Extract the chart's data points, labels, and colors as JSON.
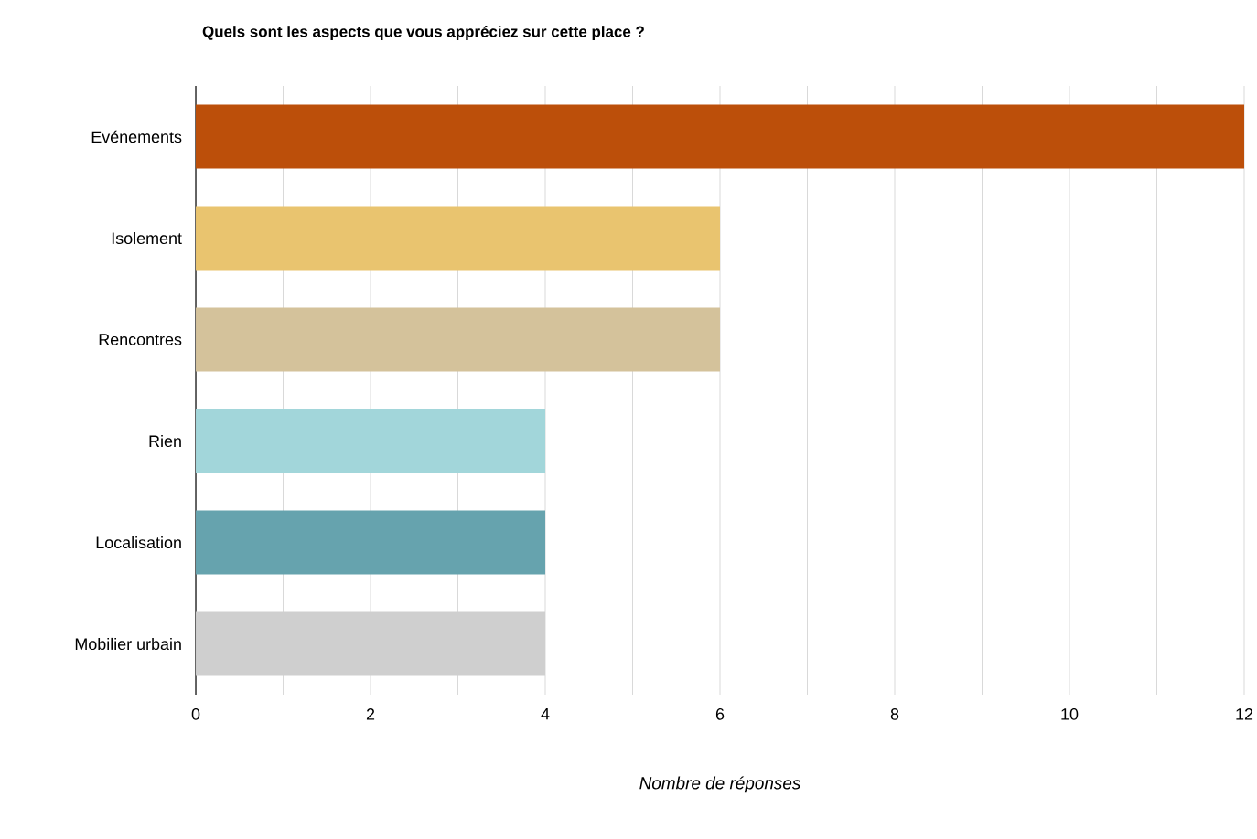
{
  "chart_data": {
    "type": "bar",
    "orientation": "horizontal",
    "title": "Quels sont les aspects que vous appréciez sur cette place ?",
    "xlabel": "Nombre de réponses",
    "categories": [
      "Evénements",
      "Isolement",
      "Rencontres",
      "Rien",
      "Localisation",
      "Mobilier urbain"
    ],
    "values": [
      12,
      6,
      6,
      4,
      4,
      4
    ],
    "colors": [
      "#bc4f0a",
      "#e9c46f",
      "#d4c29b",
      "#a2d6da",
      "#66a3ae",
      "#cfcfcf"
    ],
    "xlim": [
      0,
      12
    ],
    "xticks": [
      0,
      {
        "value": 1,
        "label": null
      },
      2,
      {
        "value": 3,
        "label": null
      },
      4,
      {
        "value": 5,
        "label": null
      },
      6,
      {
        "value": 7,
        "label": null
      },
      8,
      {
        "value": 9,
        "label": null
      },
      10,
      {
        "value": 11,
        "label": null
      },
      12
    ],
    "grid": "x"
  }
}
